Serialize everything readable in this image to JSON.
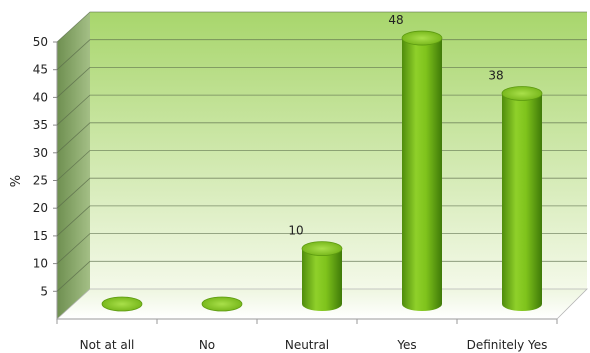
{
  "chart_data": {
    "type": "bar",
    "style": "3d-cylinder",
    "ylabel": "%",
    "ylim": [
      0,
      50
    ],
    "yticks": [
      5,
      10,
      15,
      20,
      25,
      30,
      35,
      40,
      45,
      50
    ],
    "categories": [
      "Not at all",
      "No",
      "Neutral",
      "Yes",
      "Definitely Yes"
    ],
    "values": [
      0,
      0,
      10,
      48,
      38
    ],
    "data_labels": [
      "",
      "",
      "10",
      "48",
      "38"
    ],
    "grid": true,
    "colors": {
      "bar": "#7fc31c",
      "bar_dark": "#3f7a08",
      "bar_top": "#9fd83a",
      "wall_top": "#a8d66c",
      "wall_bottom": "#f4f9e9",
      "side_wall": "#7c9c5c",
      "gridline": "#5a6b4a"
    }
  }
}
